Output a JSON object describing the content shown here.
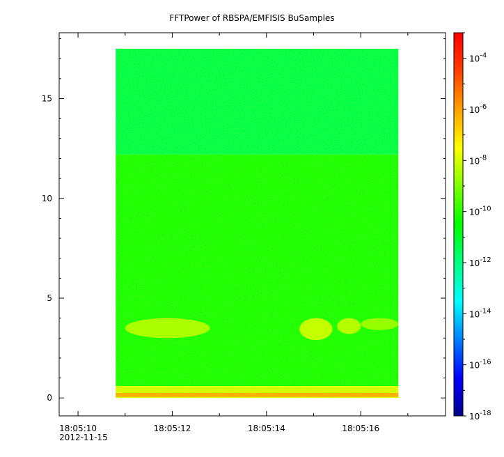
{
  "chart_data": {
    "type": "heatmap",
    "title": "FFTPower of RBSPA/EMFISIS  BuSamples",
    "xlabel": "",
    "ylabel": "",
    "x_ticks": [
      {
        "time": "18:05:10",
        "date": "2012-11-15"
      },
      {
        "time": "18:05:12",
        "date": ""
      },
      {
        "time": "18:05:14",
        "date": ""
      },
      {
        "time": "18:05:16",
        "date": ""
      }
    ],
    "xlim": [
      "18:05:09.6",
      "18:05:17.8"
    ],
    "x_data_range": [
      "18:05:10.8",
      "18:05:16.8"
    ],
    "y_ticks": [
      0,
      5,
      10,
      15
    ],
    "ylim": [
      -0.9,
      18.3
    ],
    "y_data_range": [
      0,
      17.5
    ],
    "color_scale": "log",
    "colorbar_ticks": [
      {
        "base": "10",
        "exp": "-4",
        "value": 0.0001
      },
      {
        "base": "10",
        "exp": "-6",
        "value": 1e-06
      },
      {
        "base": "10",
        "exp": "-8",
        "value": 1e-08
      },
      {
        "base": "10",
        "exp": "-10",
        "value": 1e-10
      },
      {
        "base": "10",
        "exp": "-12",
        "value": 1e-12
      },
      {
        "base": "10",
        "exp": "-14",
        "value": 1e-14
      },
      {
        "base": "10",
        "exp": "-16",
        "value": 1e-16
      },
      {
        "base": "10",
        "exp": "-18",
        "value": 1e-18
      }
    ],
    "colorbar_range": [
      1e-18,
      0.001
    ],
    "background_levels": [
      {
        "y_range": [
          12.2,
          17.5
        ],
        "log10_power": -11.3
      },
      {
        "y_range": [
          0.6,
          12.2
        ],
        "log10_power": -10.2
      },
      {
        "y_range": [
          0.0,
          0.6
        ],
        "log10_power": -8.0
      }
    ],
    "enhancements": [
      {
        "x_range": [
          "18:05:11.0",
          "18:05:12.8"
        ],
        "y_range": [
          3.0,
          4.0
        ],
        "log10_power": -8.3
      },
      {
        "x_range": [
          "18:05:14.7",
          "18:05:15.4"
        ],
        "y_range": [
          2.9,
          4.0
        ],
        "log10_power": -8.0
      },
      {
        "x_range": [
          "18:05:15.5",
          "18:05:16.0"
        ],
        "y_range": [
          3.2,
          4.0
        ],
        "log10_power": -8.2
      },
      {
        "x_range": [
          "18:05:16.0",
          "18:05:16.8"
        ],
        "y_range": [
          3.4,
          4.0
        ],
        "log10_power": -8.6
      }
    ],
    "colors": {
      "colormap": [
        "#00008b",
        "#0000ff",
        "#0080ff",
        "#00ffff",
        "#00ff80",
        "#00ff00",
        "#80ff00",
        "#ffff00",
        "#ffa000",
        "#ff4000",
        "#ff0000"
      ],
      "frame": "#000000"
    }
  }
}
